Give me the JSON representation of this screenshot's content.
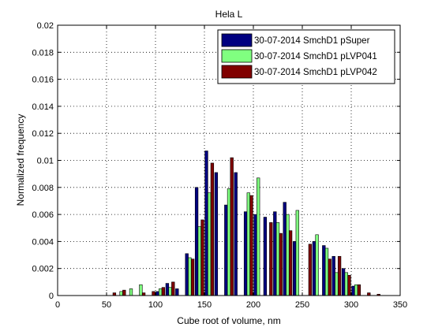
{
  "chart_data": {
    "type": "bar",
    "title": "Hela L",
    "xlabel": "Cube root of volume, nm",
    "ylabel": "Normalized frequency",
    "xlim": [
      0,
      350
    ],
    "ylim": [
      0,
      0.02
    ],
    "xticks": [
      0,
      50,
      100,
      150,
      200,
      250,
      300,
      350
    ],
    "xtick_labels": [
      "0",
      "50",
      "100",
      "150",
      "200",
      "250",
      "300",
      "350"
    ],
    "yticks": [
      0,
      0.002,
      0.004,
      0.006,
      0.008,
      0.01,
      0.012,
      0.014,
      0.016,
      0.018,
      0.02
    ],
    "ytick_labels": [
      "0",
      "0.002",
      "0.004",
      "0.006",
      "0.008",
      "0.01",
      "0.012",
      "0.014",
      "0.016",
      "0.018",
      "0.02"
    ],
    "grid": true,
    "legend_position": "top-right",
    "bin_width": 10,
    "categories": [
      55,
      65,
      75,
      85,
      95,
      105,
      115,
      125,
      135,
      145,
      155,
      165,
      175,
      185,
      195,
      205,
      215,
      225,
      235,
      245,
      255,
      265,
      275,
      285,
      295,
      305,
      315,
      325
    ],
    "series": [
      {
        "name": "30-07-2014 SmchD1 pSuper",
        "color": "#000080",
        "values": [
          0,
          0,
          0,
          0,
          0,
          0.0003,
          0.0009,
          0.0005,
          0.0031,
          0.008,
          0.0107,
          0.0091,
          0.0067,
          0.0091,
          0.0062,
          0.006,
          0.0058,
          0.0062,
          0.0069,
          0.004,
          0.0,
          0.004,
          0.0037,
          0.0029,
          0.002,
          0.0007,
          0,
          0
        ]
      },
      {
        "name": "30-07-2014 SmchD1 pLVP041",
        "color": "#80ff80",
        "values": [
          0,
          0.0003,
          0.0005,
          0.0008,
          0.0,
          0.0005,
          0.0006,
          0.0,
          0.0028,
          0.0051,
          0.0076,
          0.0,
          0.0079,
          0.0,
          0.0076,
          0.0087,
          0.0,
          0.0054,
          0.006,
          0.0063,
          0.0,
          0.0045,
          0.0035,
          0.0017,
          0.0017,
          0.0008,
          0,
          0
        ]
      },
      {
        "name": "30-07-2014 SmchD1 pLVP042",
        "color": "#800000",
        "values": [
          0.0002,
          0.0004,
          0.0,
          0.0002,
          0.0003,
          0.0006,
          0.001,
          0.0,
          0.0027,
          0.0056,
          0.0098,
          0.0,
          0.0102,
          0.0,
          0.0074,
          0.0,
          0.0054,
          0.0046,
          0.0048,
          0.0,
          0.0038,
          0.0,
          0.0027,
          0.0029,
          0.0015,
          0.0008,
          0.0002,
          0.0001
        ]
      }
    ]
  }
}
